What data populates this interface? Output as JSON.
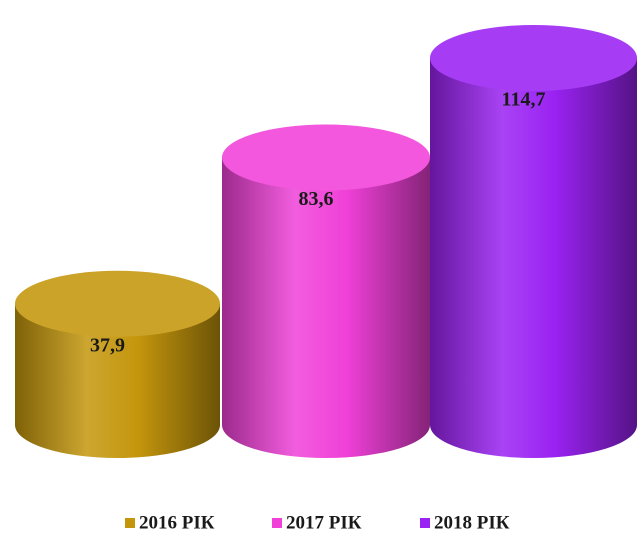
{
  "chart_data": {
    "type": "bar",
    "series": [
      {
        "name": "2016 РІК",
        "color": "#c4960c",
        "values": [
          37.9
        ],
        "value_labels": [
          "37,9"
        ]
      },
      {
        "name": "2017 РІК",
        "color": "#f040d8",
        "values": [
          83.6
        ],
        "value_labels": [
          "83,6"
        ]
      },
      {
        "name": "2018 РІК",
        "color": "#9a22f2",
        "values": [
          114.7
        ],
        "value_labels": [
          "114,7"
        ]
      }
    ]
  }
}
